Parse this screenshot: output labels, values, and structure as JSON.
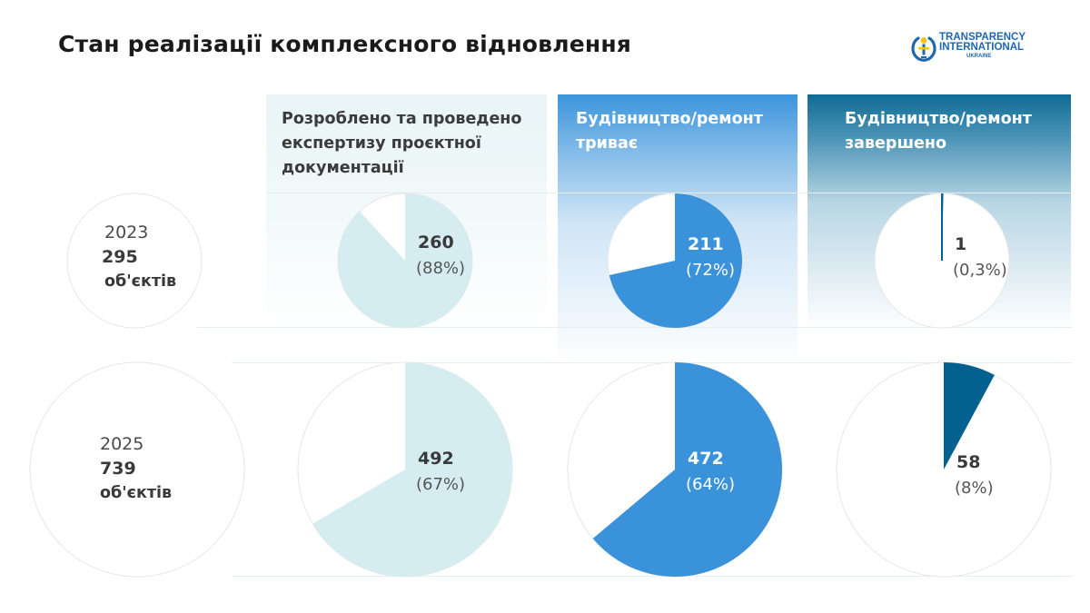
{
  "title": "Стан реалізації комплексного відновлення",
  "logo": {
    "line1": "TRANSPARENCY",
    "line2": "INTERNATIONAL",
    "line3": "UKRAINE",
    "colors": {
      "blue": "#1f67ae",
      "yellow": "#f4c21a"
    }
  },
  "headers": [
    "Розроблено та проведено експертизу проєктної документації",
    "Будівництво/ремонт триває",
    "Будівництво/ремонт завершено"
  ],
  "rows": [
    {
      "year": "2023",
      "count": "295",
      "unit": "об'єктів"
    },
    {
      "year": "2025",
      "count": "739",
      "unit": "об'єктів"
    }
  ],
  "colors": {
    "pale": "#d5edf1",
    "mid": "#3a92da",
    "dark": "#03608f",
    "circle_border": "#e6e6e6"
  },
  "chart_data": {
    "type": "pie",
    "title": "Стан реалізації комплексного відновлення",
    "categories": [
      "Розроблено та проведено експертизу проєктної документації",
      "Будівництво/ремонт триває",
      "Будівництво/ремонт завершено"
    ],
    "series": [
      {
        "name": "2023",
        "total": 295,
        "values": [
          260,
          211,
          1
        ],
        "percent_labels": [
          "(88%)",
          "(72%)",
          "(0,3%)"
        ],
        "percent": [
          88,
          72,
          0.3
        ]
      },
      {
        "name": "2025",
        "total": 739,
        "values": [
          492,
          472,
          58
        ],
        "percent_labels": [
          "(67%)",
          "(64%)",
          "(8%)"
        ],
        "percent": [
          67,
          64,
          8
        ]
      }
    ]
  }
}
